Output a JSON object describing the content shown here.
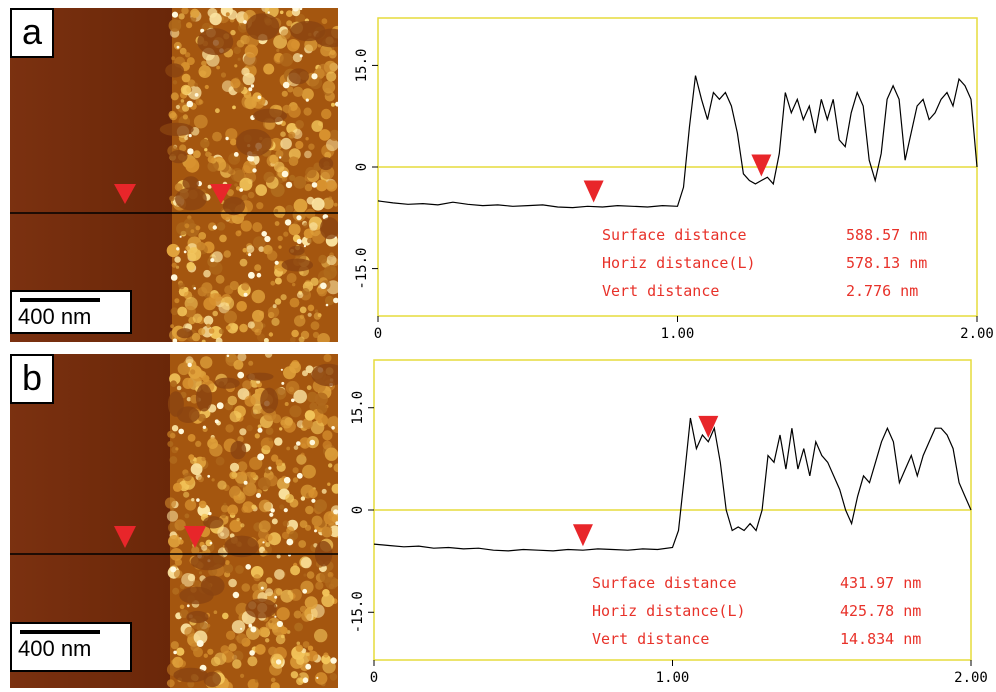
{
  "colors": {
    "frame": "#e6dc3c",
    "zero_line": "#e6dc3c",
    "marker": "#e8262a",
    "measurement_text": "#e8322a",
    "profile_line": "#000000",
    "afm_dark": "#6e2a0c",
    "afm_mid": "#a5560f",
    "afm_bright": "#e8a93a",
    "afm_highlight": "#fff4c8"
  },
  "chart_data": [
    {
      "type": "line",
      "panel_label": "a",
      "scale_bar_label": "400 nm",
      "xlim": [
        0,
        2.0
      ],
      "ylim": [
        -22,
        22
      ],
      "x_ticks": [
        "0",
        "1.00",
        "2.00"
      ],
      "y_ticks": [
        "15.0",
        "0",
        "-15.0"
      ],
      "series": [
        {
          "x": [
            0,
            0.05,
            0.1,
            0.15,
            0.2,
            0.25,
            0.3,
            0.35,
            0.4,
            0.45,
            0.5,
            0.55,
            0.6,
            0.65,
            0.7,
            0.75,
            0.8,
            0.85,
            0.9,
            0.95,
            1.0,
            1.02,
            1.04,
            1.06,
            1.08,
            1.1,
            1.12,
            1.14,
            1.16,
            1.18,
            1.2,
            1.22,
            1.24,
            1.26,
            1.28,
            1.3,
            1.32,
            1.34,
            1.36,
            1.38,
            1.4,
            1.42,
            1.44,
            1.46,
            1.48,
            1.5,
            1.52,
            1.54,
            1.56,
            1.58,
            1.6,
            1.62,
            1.64,
            1.66,
            1.68,
            1.7,
            1.72,
            1.74,
            1.76,
            1.78,
            1.8,
            1.82,
            1.84,
            1.86,
            1.88,
            1.9,
            1.92,
            1.94,
            1.96,
            1.98,
            2.0
          ],
          "y": [
            -5,
            -5.3,
            -5.5,
            -5.4,
            -5.6,
            -5.2,
            -5.5,
            -5.7,
            -5.6,
            -5.8,
            -5.7,
            -5.6,
            -5.9,
            -6.0,
            -5.8,
            -5.9,
            -5.7,
            -5.8,
            -5.9,
            -5.7,
            -5.8,
            -3,
            6,
            13.5,
            10,
            7,
            11,
            10,
            11,
            9,
            5,
            -1,
            -2,
            -2.5,
            -2,
            -1.5,
            -2.5,
            2,
            11,
            8,
            10,
            7,
            9,
            5,
            10,
            7,
            10,
            4,
            3,
            8,
            11,
            9,
            1,
            -2,
            2,
            10,
            12,
            10,
            1,
            5,
            9,
            10,
            7,
            8,
            10,
            11,
            9,
            13,
            12,
            10,
            0
          ]
        }
      ],
      "markers_x": [
        0.72,
        1.28
      ],
      "image_markers": 2,
      "measurements": [
        {
          "label": "Surface distance",
          "value": "588.57 nm"
        },
        {
          "label": "Horiz distance(L)",
          "value": "578.13 nm"
        },
        {
          "label": "Vert distance",
          "value": "2.776 nm"
        }
      ]
    },
    {
      "type": "line",
      "panel_label": "b",
      "scale_bar_label": "400 nm",
      "xlim": [
        0,
        2.0
      ],
      "ylim": [
        -22,
        22
      ],
      "x_ticks": [
        "0",
        "1.00",
        "2.00"
      ],
      "y_ticks": [
        "15.0",
        "0",
        "-15.0"
      ],
      "series": [
        {
          "x": [
            0,
            0.05,
            0.1,
            0.15,
            0.2,
            0.25,
            0.3,
            0.35,
            0.4,
            0.45,
            0.5,
            0.55,
            0.6,
            0.65,
            0.7,
            0.75,
            0.8,
            0.85,
            0.9,
            0.95,
            1.0,
            1.02,
            1.04,
            1.06,
            1.08,
            1.1,
            1.12,
            1.14,
            1.16,
            1.18,
            1.2,
            1.22,
            1.24,
            1.26,
            1.28,
            1.3,
            1.32,
            1.34,
            1.36,
            1.38,
            1.4,
            1.42,
            1.44,
            1.46,
            1.48,
            1.5,
            1.52,
            1.54,
            1.56,
            1.58,
            1.6,
            1.62,
            1.64,
            1.66,
            1.68,
            1.7,
            1.72,
            1.74,
            1.76,
            1.78,
            1.8,
            1.82,
            1.84,
            1.86,
            1.88,
            1.9,
            1.92,
            1.94,
            1.96,
            1.98,
            2.0
          ],
          "y": [
            -5,
            -5.2,
            -5.4,
            -5.3,
            -5.6,
            -5.5,
            -5.7,
            -5.6,
            -5.9,
            -6.0,
            -5.8,
            -5.9,
            -6.0,
            -5.8,
            -5.9,
            -5.7,
            -5.8,
            -5.9,
            -5.7,
            -5.8,
            -5.5,
            -3,
            5,
            13.5,
            9,
            11,
            10,
            12,
            7,
            0,
            -3,
            -2.5,
            -3,
            -2,
            -3,
            0,
            8,
            7,
            11,
            6,
            12,
            6,
            9,
            5,
            10,
            8,
            7,
            5,
            3,
            0,
            -2,
            2,
            5,
            4,
            7,
            10,
            12,
            10,
            4,
            6,
            8,
            5,
            8,
            10,
            12,
            12,
            11,
            9,
            4,
            2,
            0
          ]
        }
      ],
      "markers_x": [
        0.7,
        1.12
      ],
      "image_markers": 2,
      "measurements": [
        {
          "label": "Surface distance",
          "value": "431.97 nm"
        },
        {
          "label": "Horiz distance(L)",
          "value": "425.78 nm"
        },
        {
          "label": "Vert distance",
          "value": "14.834 nm"
        }
      ]
    }
  ]
}
